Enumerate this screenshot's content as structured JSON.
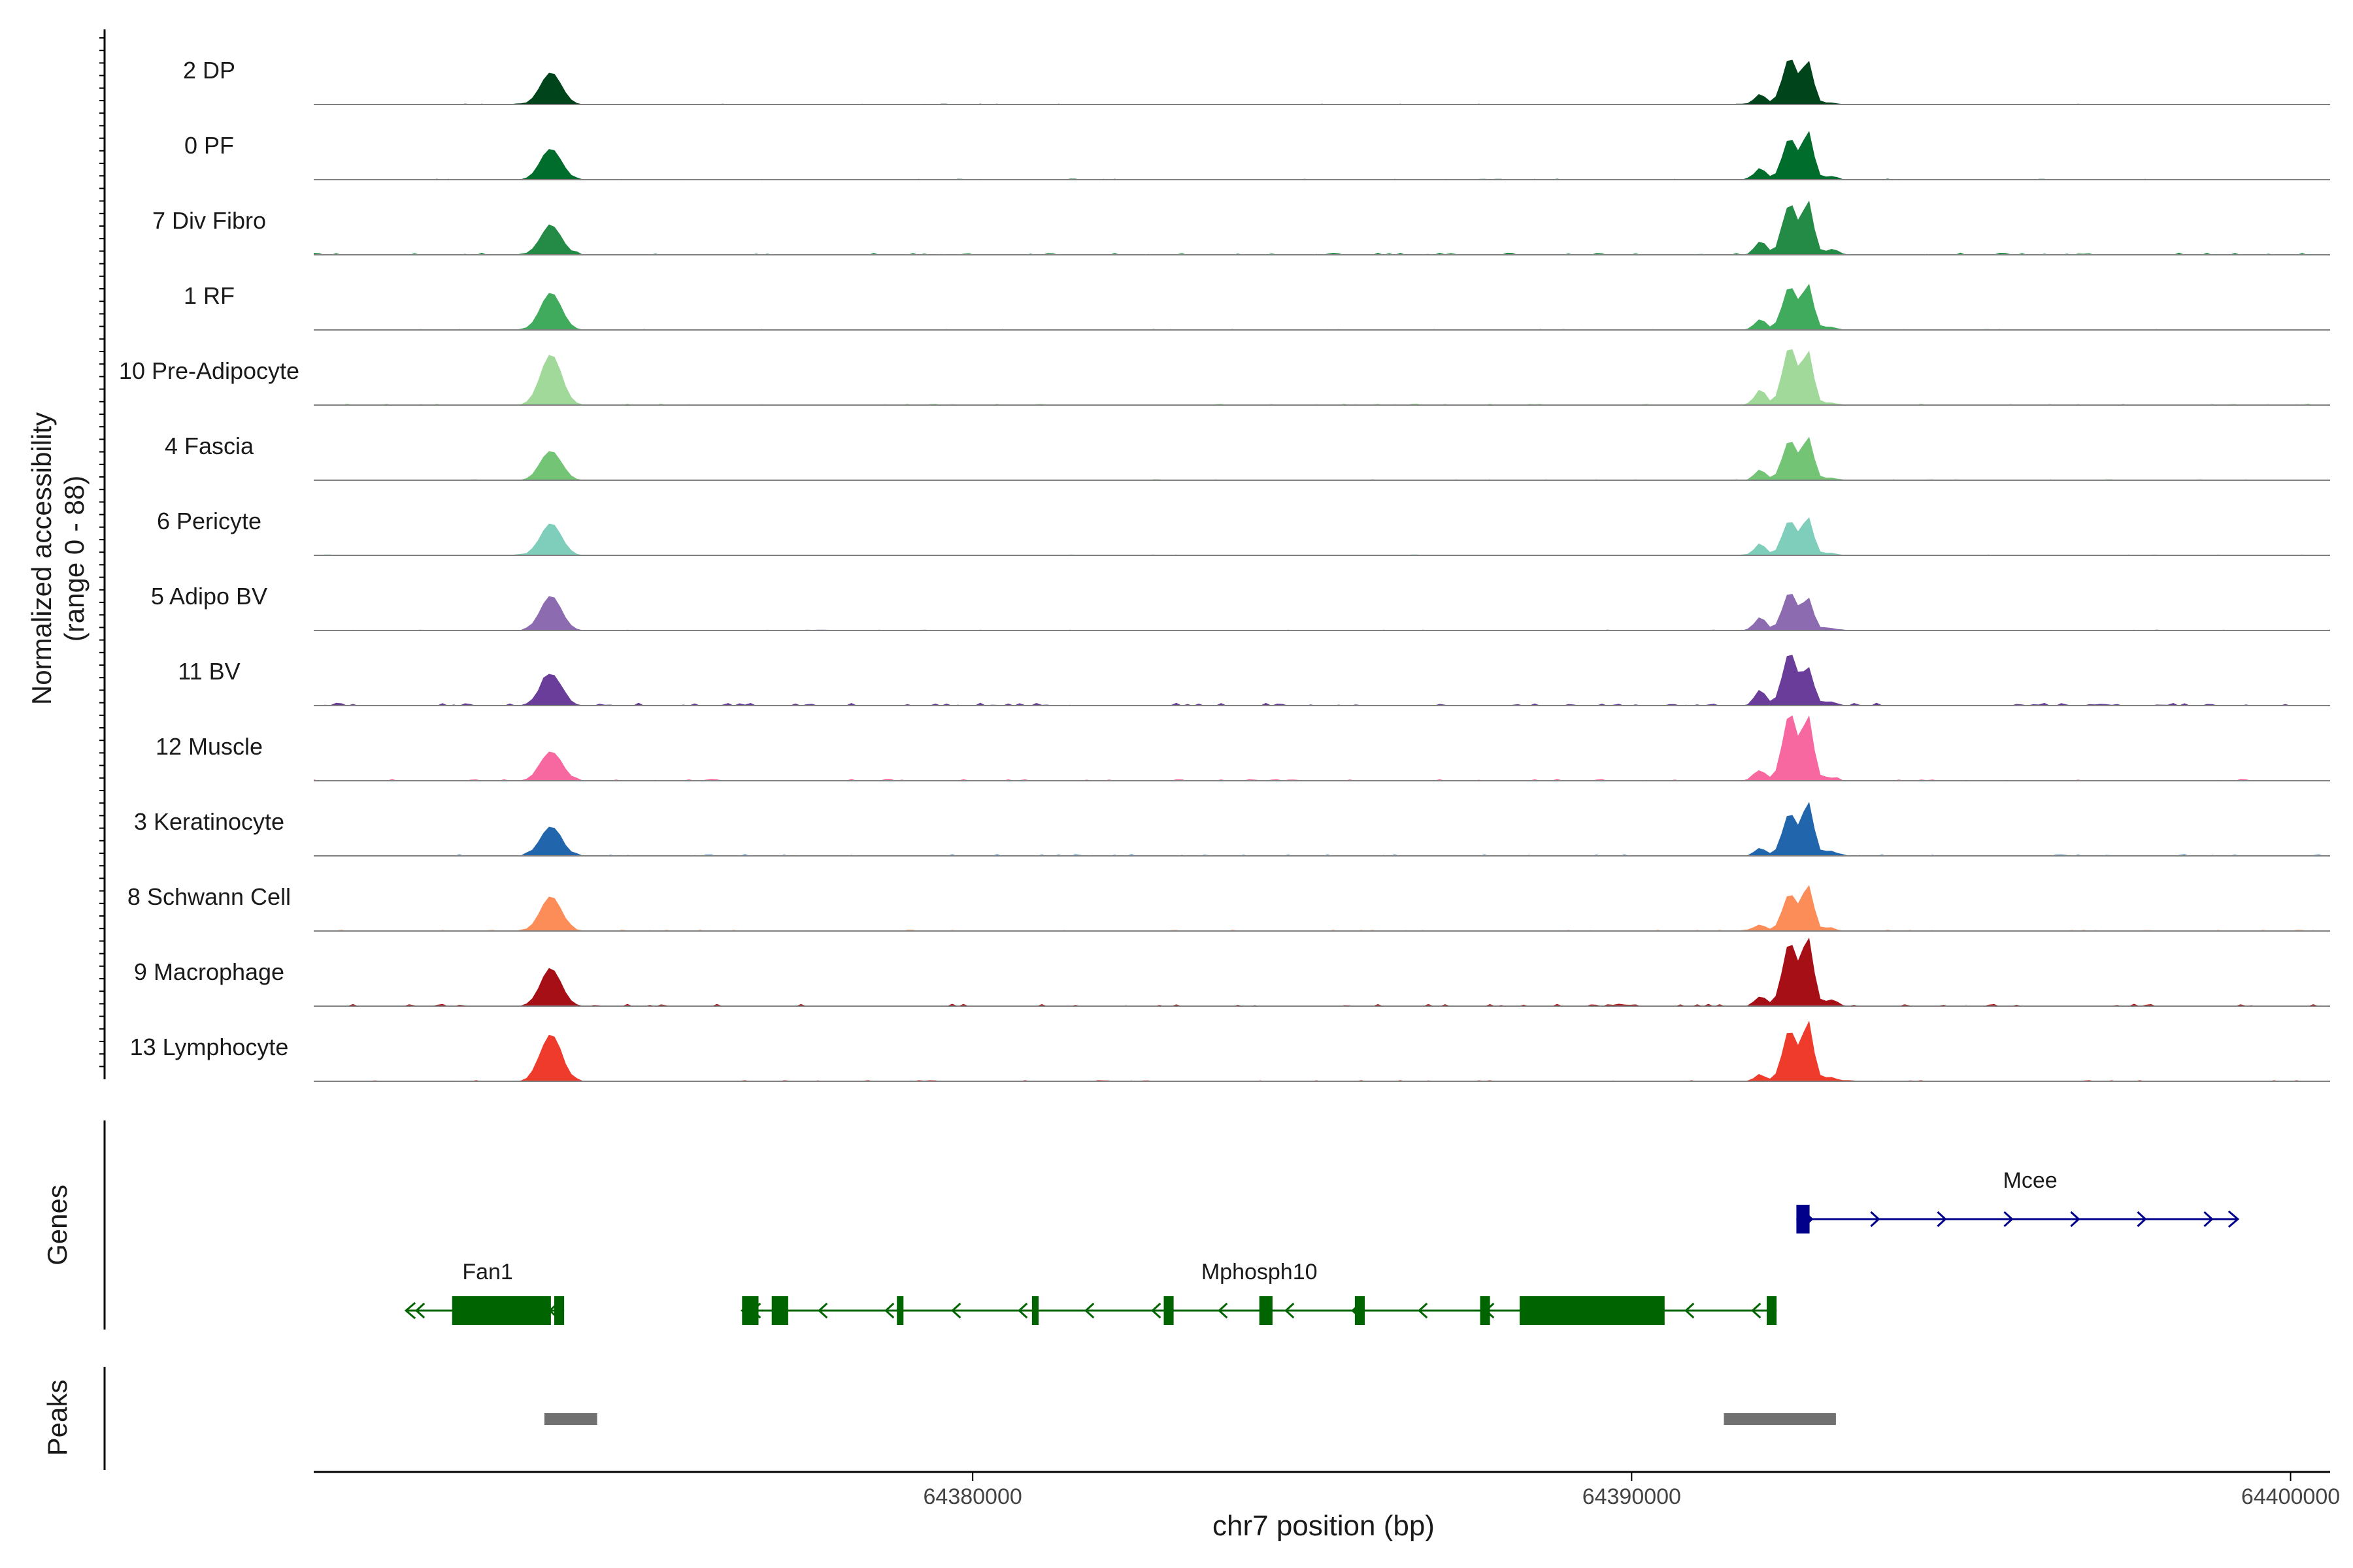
{
  "chart_data": {
    "type": "area",
    "ylabel_line1": "Normalized accessibility",
    "ylabel_line2": "(range 0 - 88)",
    "ylim": [
      0,
      88
    ],
    "xlabel": "chr7 position (bp)",
    "xlim": [
      64370000,
      64400600
    ],
    "x_ticks": [
      64380000,
      64390000,
      64400000
    ],
    "x_tick_labels": [
      "64380000",
      "64390000",
      "64400000"
    ],
    "peak_centers": [
      64373600,
      64391950,
      64392400,
      64392680,
      64393000
    ],
    "series": [
      {
        "name": "2 DP",
        "color": "#00441b",
        "peaks": [
          60,
          20,
          88,
          80,
          4
        ],
        "noise": 0.3
      },
      {
        "name": "0 PF",
        "color": "#006d2c",
        "peaks": [
          58,
          22,
          78,
          90,
          6
        ],
        "noise": 0.35
      },
      {
        "name": "7 Div Fibro",
        "color": "#238b45",
        "peaks": [
          55,
          25,
          95,
          100,
          8
        ],
        "noise": 0.7
      },
      {
        "name": "1 RF",
        "color": "#41ab5d",
        "peaks": [
          70,
          20,
          82,
          85,
          6
        ],
        "noise": 0.3
      },
      {
        "name": "10 Pre-Adipocyte",
        "color": "#a1d99b",
        "peaks": [
          95,
          28,
          110,
          100,
          5
        ],
        "noise": 0.5
      },
      {
        "name": "4 Fascia",
        "color": "#74c476",
        "peaks": [
          55,
          20,
          75,
          80,
          5
        ],
        "noise": 0.3
      },
      {
        "name": "6 Pericyte",
        "color": "#7fcdbb",
        "peaks": [
          60,
          22,
          65,
          70,
          5
        ],
        "noise": 0.3
      },
      {
        "name": "5 Adipo BV",
        "color": "#8c6bb1",
        "peaks": [
          65,
          25,
          72,
          60,
          5
        ],
        "noise": 0.3
      },
      {
        "name": "11 BV",
        "color": "#6a3d9a",
        "peaks": [
          60,
          30,
          100,
          70,
          8
        ],
        "noise": 1.0
      },
      {
        "name": "12 Muscle",
        "color": "#f768a1",
        "peaks": [
          55,
          20,
          125,
          120,
          6
        ],
        "noise": 0.6
      },
      {
        "name": "3 Keratinocyte",
        "color": "#2166ac",
        "peaks": [
          55,
          15,
          80,
          100,
          10
        ],
        "noise": 0.5
      },
      {
        "name": "8 Schwann Cell",
        "color": "#fc8d59",
        "peaks": [
          65,
          12,
          70,
          85,
          5
        ],
        "noise": 0.4
      },
      {
        "name": "9 Macrophage",
        "color": "#a50f15",
        "peaks": [
          70,
          18,
          120,
          130,
          10
        ],
        "noise": 0.8
      },
      {
        "name": "13 Lymphocyte",
        "color": "#ef3b2c",
        "peaks": [
          88,
          12,
          95,
          110,
          8
        ],
        "noise": 0.4
      }
    ],
    "genes_track_label": "Genes",
    "genes": [
      {
        "name": "Mcee",
        "strand": "+",
        "color": "#00008b",
        "start": 64392500,
        "end": 64399200,
        "exons": [
          [
            64392500,
            64392700
          ]
        ]
      },
      {
        "name": "Fan1",
        "strand": "-",
        "color": "#006400",
        "start": 64371400,
        "end": 64373800,
        "exons": [
          [
            64372100,
            64373600
          ],
          [
            64373650,
            64373800
          ]
        ]
      },
      {
        "name": "Mphosph10",
        "strand": "-",
        "color": "#006400",
        "start": 64376500,
        "end": 64392200,
        "exons": [
          [
            64376500,
            64376750
          ],
          [
            64376950,
            64377200
          ],
          [
            64378850,
            64378950
          ],
          [
            64380900,
            64381000
          ],
          [
            64382900,
            64383050
          ],
          [
            64384350,
            64384550
          ],
          [
            64385800,
            64385950
          ],
          [
            64387700,
            64387850
          ],
          [
            64388300,
            64390500
          ],
          [
            64392050,
            64392200
          ]
        ]
      }
    ],
    "peaks_track_label": "Peaks",
    "peak_regions": [
      [
        64373500,
        64374300
      ],
      [
        64391400,
        64393100
      ]
    ]
  }
}
